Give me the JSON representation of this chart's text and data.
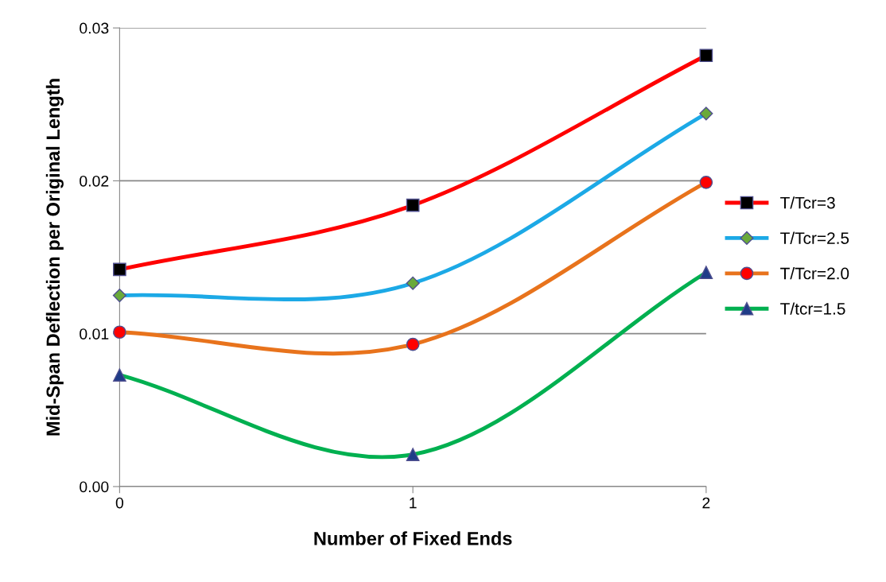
{
  "chart_data": {
    "type": "line",
    "xlabel": "Number of Fixed Ends",
    "ylabel": "Mid-Span Deflection per Original Length",
    "x": [
      0,
      1,
      2
    ],
    "xlim": [
      0,
      2
    ],
    "xticks": [
      0,
      1,
      2
    ],
    "ylim": [
      0,
      0.03
    ],
    "yticks": [
      {
        "value": 0,
        "label": "0.00"
      },
      {
        "value": 0.01,
        "label": "0.01"
      },
      {
        "value": 0.02,
        "label": "0.02"
      },
      {
        "value": 0.03,
        "label": "0.03"
      }
    ],
    "grid": "y",
    "legend": "right",
    "line_style": "solid",
    "series": [
      {
        "name": "T/Tcr=3",
        "color": "#ff0000",
        "marker": "square",
        "colors": [
          "#000000",
          "#000000",
          "#000000"
        ],
        "values": [
          0.0142,
          0.0184,
          0.0282
        ]
      },
      {
        "name": "T/Tcr=2.5",
        "color": "#1ca9e6",
        "marker": "diamond",
        "colors": [
          "#6aaa3a",
          "#6aaa3a",
          "#6aaa3a"
        ],
        "values": [
          0.0125,
          0.0133,
          0.0244
        ]
      },
      {
        "name": "T/Tcr=2.0",
        "color": "#e8731c",
        "marker": "circle",
        "colors": [
          "#ff0000",
          "#ff0000",
          "#ff0000"
        ],
        "values": [
          0.0101,
          0.0093,
          0.0199
        ]
      },
      {
        "name": "T/tcr=1.5",
        "color": "#00b050",
        "marker": "triangle",
        "colors": [
          "#1f3c88",
          "#1f3c88",
          "#1f3c88"
        ],
        "values": [
          0.0073,
          0.0021,
          0.014
        ]
      }
    ]
  }
}
